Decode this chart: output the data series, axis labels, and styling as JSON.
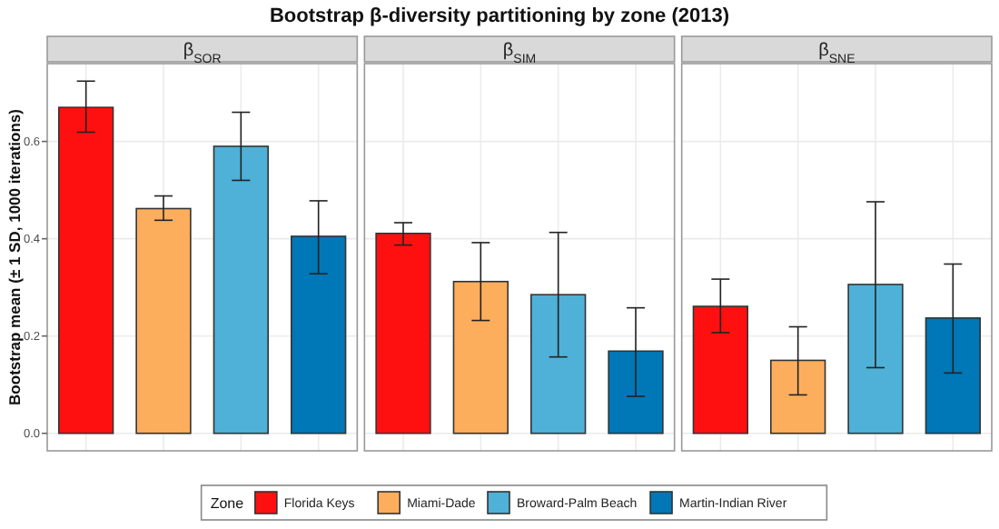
{
  "chart_data": {
    "type": "bar",
    "title": "Bootstrap β-diversity partitioning by zone (2013)",
    "ylabel": "Bootstrap mean (± 1 SD, 1000 iterations)",
    "legend_title": "Zone",
    "legend": "bottom",
    "grid": true,
    "categories": [
      "β$_{SOR}$",
      "β$_{SIM}$",
      "β$_{SNE}$"
    ],
    "ylim": [
      -0.036,
      0.76
    ],
    "yticks": [
      {
        "value": 0,
        "label": "0.0"
      },
      {
        "value": 0.2,
        "label": "0.2"
      },
      {
        "value": 0.4,
        "label": "0.4"
      },
      {
        "value": 0.6,
        "label": "0.6"
      }
    ],
    "series": [
      {
        "name": "Florida Keys",
        "color": "#ff1010",
        "values": [
          0.67,
          0.411,
          0.261
        ],
        "errors": [
          [
            0.619,
            0.724
          ],
          [
            0.387,
            0.433
          ],
          [
            0.207,
            0.317
          ]
        ]
      },
      {
        "name": "Miami-Dade",
        "color": "#fdae5d",
        "values": [
          0.462,
          0.312,
          0.15
        ],
        "errors": [
          [
            0.438,
            0.488
          ],
          [
            0.232,
            0.392
          ],
          [
            0.079,
            0.219
          ]
        ]
      },
      {
        "name": "Broward-Palm Beach",
        "color": "#4fb0d8",
        "values": [
          0.59,
          0.285,
          0.306
        ],
        "errors": [
          [
            0.52,
            0.66
          ],
          [
            0.157,
            0.413
          ],
          [
            0.135,
            0.476
          ]
        ]
      },
      {
        "name": "Martin-Indian River",
        "color": "#0077b6",
        "values": [
          0.405,
          0.169,
          0.237
        ],
        "errors": [
          [
            0.328,
            0.478
          ],
          [
            0.076,
            0.258
          ],
          [
            0.124,
            0.348
          ]
        ]
      }
    ]
  }
}
